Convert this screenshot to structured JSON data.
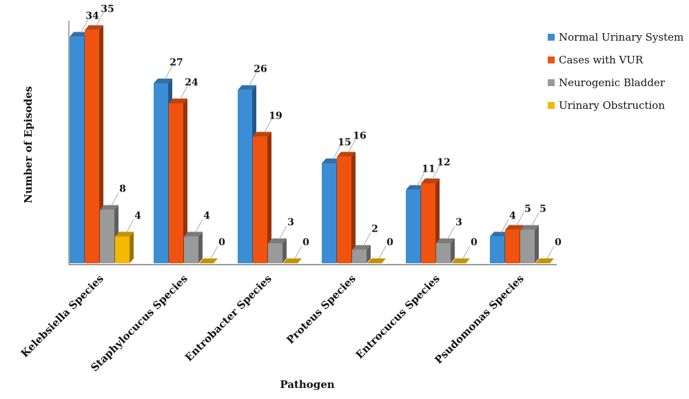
{
  "chart_data": {
    "type": "bar",
    "xlabel": "Pathogen",
    "ylabel": "Number of Episodes",
    "categories": [
      "Kelebsiella Species",
      "Staphylocucus Species",
      "Entrobacter Species",
      "Proteus Species",
      "Entrocucus Species",
      "Psudomonas Species"
    ],
    "series": [
      {
        "name": "Normal Urinary System",
        "values": [
          34,
          27,
          26,
          15,
          11,
          4
        ],
        "color": "#3b8ed6"
      },
      {
        "name": "Cases with VUR",
        "values": [
          35,
          24,
          19,
          16,
          12,
          5
        ],
        "color": "#f0520f"
      },
      {
        "name": "Neurogenic Bladder",
        "values": [
          8,
          4,
          3,
          2,
          3,
          5
        ],
        "color": "#9a9a9a"
      },
      {
        "name": "Urinary Obstruction",
        "values": [
          4,
          0,
          0,
          0,
          0,
          0
        ],
        "color": "#f5b800"
      }
    ],
    "ylim": [
      0,
      36
    ],
    "grid": false,
    "legend_position": "top-right",
    "projection": "3d"
  }
}
